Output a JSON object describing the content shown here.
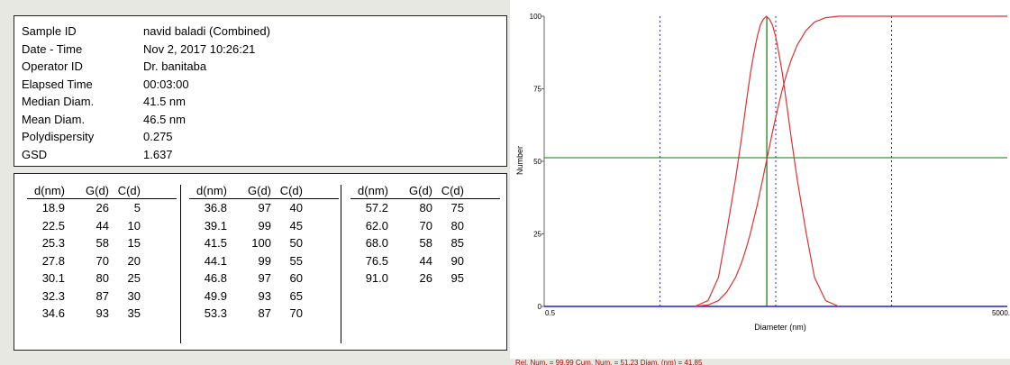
{
  "info": {
    "rows": [
      {
        "label": "Sample ID",
        "value": "navid baladi (Combined)"
      },
      {
        "label": "Date - Time",
        "value": "Nov 2, 2017  10:26:21"
      },
      {
        "label": "Operator ID",
        "value": "Dr. banitaba"
      },
      {
        "label": "Elapsed Time",
        "value": "00:03:00"
      },
      {
        "label": "Median Diam.",
        "value": "41.5 nm"
      },
      {
        "label": "Mean Diam.",
        "value": "46.5 nm"
      },
      {
        "label": "Polydispersity",
        "value": "0.275"
      },
      {
        "label": "GSD",
        "value": "1.637"
      }
    ]
  },
  "table": {
    "headers": [
      "d(nm)",
      "G(d)",
      "C(d)"
    ],
    "groups": [
      [
        [
          "18.9",
          "26",
          "5"
        ],
        [
          "22.5",
          "44",
          "10"
        ],
        [
          "25.3",
          "58",
          "15"
        ],
        [
          "27.8",
          "70",
          "20"
        ],
        [
          "30.1",
          "80",
          "25"
        ],
        [
          "32.3",
          "87",
          "30"
        ],
        [
          "34.6",
          "93",
          "35"
        ]
      ],
      [
        [
          "36.8",
          "97",
          "40"
        ],
        [
          "39.1",
          "99",
          "45"
        ],
        [
          "41.5",
          "100",
          "50"
        ],
        [
          "44.1",
          "99",
          "55"
        ],
        [
          "46.8",
          "97",
          "60"
        ],
        [
          "49.9",
          "93",
          "65"
        ],
        [
          "53.3",
          "87",
          "70"
        ]
      ],
      [
        [
          "57.2",
          "80",
          "75"
        ],
        [
          "62.0",
          "70",
          "80"
        ],
        [
          "68.0",
          "58",
          "85"
        ],
        [
          "76.5",
          "44",
          "90"
        ],
        [
          "91.0",
          "26",
          "95"
        ]
      ]
    ]
  },
  "chart_data": {
    "type": "line",
    "xlabel": "Diameter (nm)",
    "ylabel": "Number",
    "x_scale": "log",
    "xlim": [
      0.5,
      5000
    ],
    "ylim": [
      0,
      100
    ],
    "x_tick_labels": [
      "0.5",
      "5000."
    ],
    "y_ticks": [
      0,
      25,
      50,
      75,
      100
    ],
    "grid": false,
    "series": [
      {
        "x": [
          10,
          13,
          16,
          18.9,
          22.5,
          25.3,
          27.8,
          30.1,
          32.3,
          34.6,
          36.8,
          39.1,
          41.5,
          44.1,
          46.8,
          49.9,
          53.3,
          57.2,
          62.0,
          68.0,
          76.5,
          91.0,
          108,
          135,
          175
        ],
        "y": [
          0,
          2,
          10,
          26,
          44,
          58,
          70,
          80,
          87,
          93,
          97,
          99,
          100,
          99,
          97,
          93,
          87,
          80,
          70,
          58,
          44,
          26,
          10,
          2,
          0
        ]
      },
      {
        "x": [
          10,
          13,
          16,
          18.9,
          22.5,
          25.3,
          27.8,
          30.1,
          32.3,
          34.6,
          36.8,
          39.1,
          41.5,
          44.1,
          46.8,
          49.9,
          53.3,
          57.2,
          62.0,
          68.0,
          76.5,
          91.0,
          108,
          135,
          175,
          250,
          5000
        ],
        "y": [
          0,
          0.5,
          2,
          5,
          10,
          15,
          20,
          25,
          30,
          35,
          40,
          45,
          50,
          55,
          60,
          65,
          70,
          75,
          80,
          85,
          90,
          95,
          98,
          99.5,
          100,
          100,
          100
        ]
      }
    ],
    "reference_lines": {
      "vertical_blue_dashed": [
        5,
        50,
        500
      ],
      "vertical_green": 41.85,
      "horizontal_green": 51.23
    }
  },
  "status": {
    "text": "Rel. Num. = 99.99     Cum. Num. = 51.23     Diam. (nm) = 41.85"
  },
  "colors": {
    "curve": "#e03030",
    "crosshair": "#008000",
    "baseline": "#2020c0",
    "dashed": "#3030b0"
  }
}
